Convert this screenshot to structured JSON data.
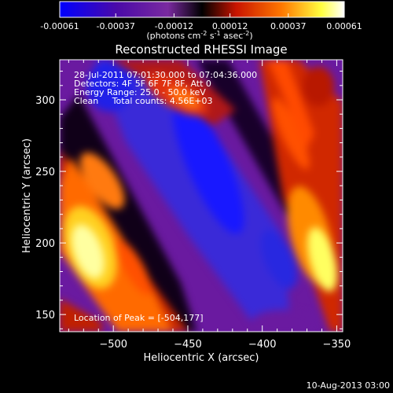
{
  "colorbar": {
    "ticks": [
      "-0.00061",
      "-0.00037",
      "-0.00012",
      "0.00012",
      "0.00037",
      "0.00061"
    ],
    "unit_label": "(photons cm",
    "unit_exp1": "-2",
    "unit_mid": " s",
    "unit_exp2": "-1",
    "unit_tail": " asec",
    "unit_exp3": "-2",
    "unit_close": ")",
    "colors": [
      "#0000ff",
      "#4a0aa8",
      "#7a2aa0",
      "#000000",
      "#c81400",
      "#ff7800",
      "#ffff40",
      "#ffffff"
    ]
  },
  "annotations": {
    "line1": "28-Jul-2011 07:01:30.000 to 07:04:36.000",
    "line2": "Detectors: 4F 5F 6F 7F 8F, Att 0",
    "line3": "Energy Range: 25.0 - 50.0 keV",
    "line4": "Clean     Total counts: 4.56E+03",
    "peak": "Location of Peak = [-504,177]"
  },
  "footer": {
    "date": "10-Aug-2013 03:00"
  },
  "chart_data": {
    "type": "heatmap",
    "title": "Reconstructed RHESSI Image",
    "xlabel": "Heliocentric X (arcsec)",
    "ylabel": "Heliocentric Y (arcsec)",
    "xlim": [
      -536,
      -346
    ],
    "ylim": [
      138,
      328
    ],
    "xticks": [
      -500,
      -450,
      -400,
      -350
    ],
    "yticks": [
      150,
      200,
      250,
      300
    ],
    "xtick_labels": [
      "−500",
      "−450",
      "−400",
      "−350"
    ],
    "ytick_labels": [
      "150",
      "200",
      "250",
      "300"
    ],
    "value_range": [
      -0.00061,
      0.00061
    ],
    "peak_location": [
      -504,
      177
    ]
  }
}
